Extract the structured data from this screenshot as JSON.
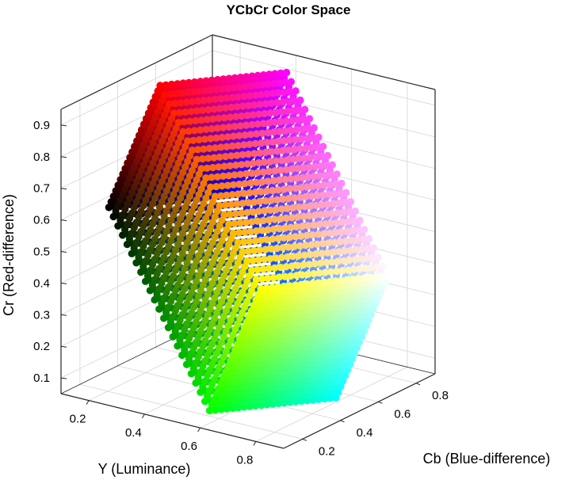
{
  "chart_data": {
    "type": "scatter3d",
    "title": "YCbCr Color Space",
    "xlabel": "Y (Luminance)",
    "ylabel": "Cb (Blue-difference)",
    "zlabel": "Cr (Red-difference)",
    "xlim": [
      0.1,
      0.9
    ],
    "ylim": [
      0.1,
      0.9
    ],
    "zlim": [
      0.05,
      0.95
    ],
    "xticks": [
      "0.2",
      "0.4",
      "0.6",
      "0.8"
    ],
    "yticks": [
      "0.2",
      "0.4",
      "0.6",
      "0.8"
    ],
    "zticks": [
      "0.1",
      "0.2",
      "0.3",
      "0.4",
      "0.5",
      "0.6",
      "0.7",
      "0.8",
      "0.9"
    ],
    "grid": true,
    "colormap": "rgb",
    "cube_corners": [
      {
        "name": "black",
        "color": "#000000",
        "Y": 0.0,
        "Cb": 0.5,
        "Cr": 0.5
      },
      {
        "name": "red",
        "color": "#ff0000",
        "Y": 0.299,
        "Cb": 0.331,
        "Cr": 1.0
      },
      {
        "name": "green",
        "color": "#00ff00",
        "Y": 0.587,
        "Cb": 0.169,
        "Cr": 0.081
      },
      {
        "name": "blue",
        "color": "#0000ff",
        "Y": 0.114,
        "Cb": 1.0,
        "Cr": 0.419
      },
      {
        "name": "yellow",
        "color": "#ffff00",
        "Y": 0.886,
        "Cb": 0.0,
        "Cr": 0.581
      },
      {
        "name": "magenta",
        "color": "#ff00ff",
        "Y": 0.413,
        "Cb": 0.831,
        "Cr": 0.919
      },
      {
        "name": "cyan",
        "color": "#00ffff",
        "Y": 0.701,
        "Cb": 0.669,
        "Cr": 0.0
      },
      {
        "name": "white",
        "color": "#ffffff",
        "Y": 1.0,
        "Cb": 0.5,
        "Cr": 0.5
      }
    ]
  }
}
